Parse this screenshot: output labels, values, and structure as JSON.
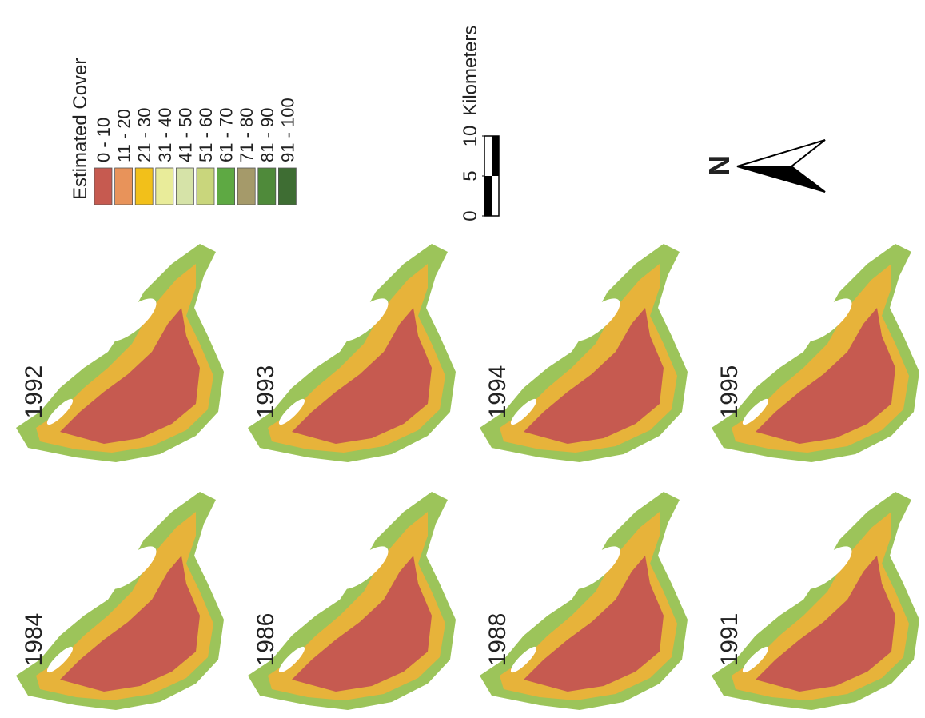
{
  "legend": {
    "title": "Estimated Cover",
    "items": [
      {
        "label": "0 - 10",
        "color": "#c65a50"
      },
      {
        "label": "11 - 20",
        "color": "#e8935a"
      },
      {
        "label": "21 - 30",
        "color": "#f2c01a"
      },
      {
        "label": "31 - 40",
        "color": "#e9ec9a"
      },
      {
        "label": "41 - 50",
        "color": "#d6e3a8"
      },
      {
        "label": "51 - 60",
        "color": "#c9d67c"
      },
      {
        "label": "61 - 70",
        "color": "#5ea943"
      },
      {
        "label": "71 - 80",
        "color": "#a59a6a"
      },
      {
        "label": "81 - 90",
        "color": "#4f8a3a"
      },
      {
        "label": "91 - 100",
        "color": "#3e6d33"
      }
    ]
  },
  "scale": {
    "ticks": [
      0,
      5,
      10
    ],
    "unit": "Kilometers"
  },
  "north": "N",
  "panels": [
    "1984",
    "1986",
    "1988",
    "1991",
    "1992",
    "1993",
    "1994",
    "1995"
  ]
}
